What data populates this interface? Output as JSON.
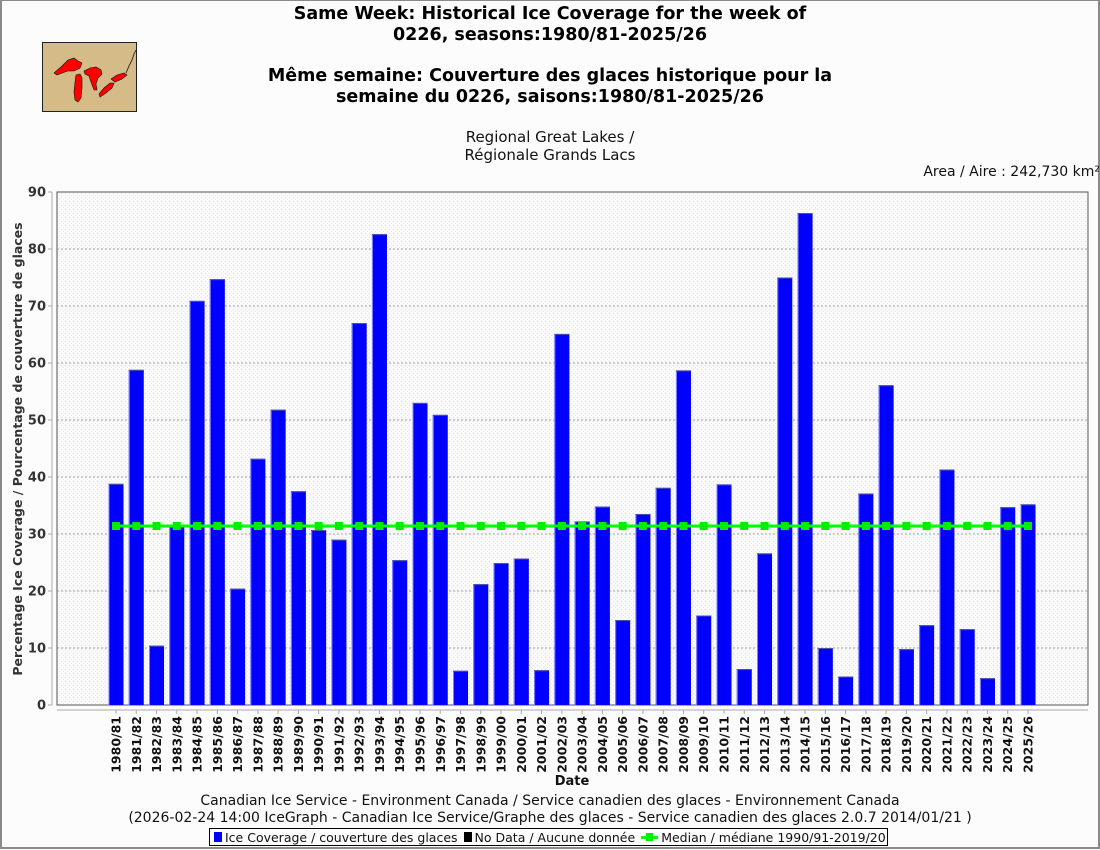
{
  "header": {
    "title_en_line1": "Same Week: Historical Ice Coverage for the week of",
    "title_en_line2": "0226, seasons:1980/81-2025/26",
    "title_fr_line1": "Même semaine: Couverture des glaces historique pour la",
    "title_fr_line2": "semaine du 0226, saisons:1980/81-2025/26",
    "region_line1": "Regional Great Lakes /",
    "region_line2": "Régionale Grands Lacs",
    "area": "Area / Aire : 242,730 km²",
    "logo_icon": "great-lakes-map-icon"
  },
  "footer": {
    "line1": "Canadian Ice Service - Environment Canada / Service canadien des glaces - Environnement Canada",
    "line2": "(2026-02-24 14:00 IceGraph - Canadian Ice Service/Graphe des glaces - Service canadien des glaces 2.0.7 2014/01/21 )"
  },
  "colors": {
    "bar": "#0000ff",
    "no_data": "#000000",
    "median": "#00ff00",
    "grid": "#888888",
    "logo_land": "#d4bb88",
    "logo_water": "#ff0000"
  },
  "chart_data": {
    "type": "bar",
    "title": "Same Week: Historical Ice Coverage for the week of 0226, seasons:1980/81-2025/26",
    "xlabel": "Date",
    "ylabel": "Percentage Ice Coverage / Pourcentage de couverture de glaces",
    "ylim": [
      0,
      90
    ],
    "yticks": [
      "0",
      "10",
      "20",
      "30",
      "40",
      "50",
      "60",
      "70",
      "80",
      "90"
    ],
    "grid": true,
    "legend_position": "bottom",
    "categories": [
      "1980/81",
      "1981/82",
      "1982/83",
      "1983/84",
      "1984/85",
      "1985/86",
      "1986/87",
      "1987/88",
      "1988/89",
      "1989/90",
      "1990/91",
      "1991/92",
      "1992/93",
      "1993/94",
      "1994/95",
      "1995/96",
      "1996/97",
      "1997/98",
      "1998/99",
      "1999/00",
      "2000/01",
      "2001/02",
      "2002/03",
      "2003/04",
      "2004/05",
      "2005/06",
      "2006/07",
      "2007/08",
      "2008/09",
      "2009/10",
      "2010/11",
      "2011/12",
      "2012/13",
      "2013/14",
      "2014/15",
      "2015/16",
      "2016/17",
      "2017/18",
      "2018/19",
      "2019/20",
      "2020/21",
      "2021/22",
      "2022/23",
      "2023/24",
      "2024/25",
      "2025/26"
    ],
    "series": [
      {
        "name": "Ice Coverage / couverture des glaces",
        "type": "bar",
        "values": [
          38.8,
          58.8,
          10.4,
          31.3,
          70.9,
          74.7,
          20.4,
          43.2,
          51.8,
          37.5,
          30.7,
          29.0,
          67.0,
          82.6,
          25.4,
          53.0,
          50.9,
          6.0,
          21.2,
          24.9,
          25.7,
          6.1,
          65.1,
          32.2,
          34.8,
          14.9,
          33.5,
          38.1,
          58.7,
          15.7,
          38.7,
          6.3,
          26.6,
          75.0,
          86.3,
          10.0,
          5.0,
          37.1,
          56.1,
          9.8,
          14.0,
          41.3,
          13.3,
          4.7,
          34.7,
          35.2
        ]
      },
      {
        "name": "Median / médiane 1990/91-2019/20",
        "type": "line",
        "values": [
          31.4,
          31.4,
          31.4,
          31.4,
          31.4,
          31.4,
          31.4,
          31.4,
          31.4,
          31.4,
          31.4,
          31.4,
          31.4,
          31.4,
          31.4,
          31.4,
          31.4,
          31.4,
          31.4,
          31.4,
          31.4,
          31.4,
          31.4,
          31.4,
          31.4,
          31.4,
          31.4,
          31.4,
          31.4,
          31.4,
          31.4,
          31.4,
          31.4,
          31.4,
          31.4,
          31.4,
          31.4,
          31.4,
          31.4,
          31.4,
          31.4,
          31.4,
          31.4,
          31.4,
          31.4,
          31.4
        ]
      }
    ],
    "legend": [
      {
        "label": "Ice Coverage / couverture des glaces",
        "color": "#0000ff"
      },
      {
        "label": "No Data / Aucune donnée",
        "color": "#000000"
      },
      {
        "label": "Median / médiane 1990/91-2019/20",
        "color": "#00ff00"
      }
    ]
  }
}
